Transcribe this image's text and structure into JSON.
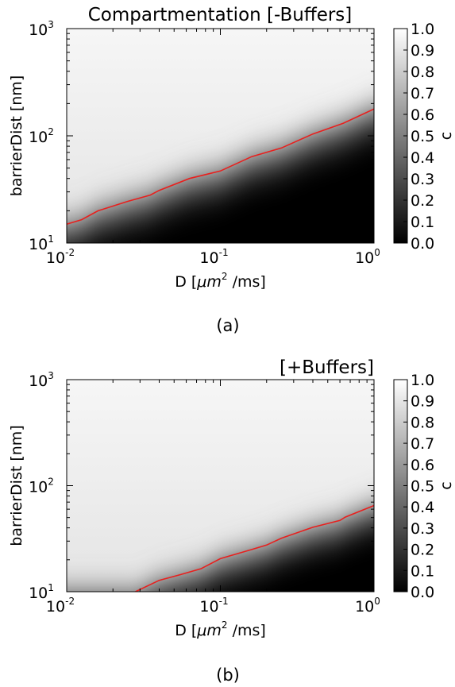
{
  "figure": {
    "captions": [
      "(a)",
      "(b)"
    ]
  },
  "chart_data": [
    {
      "type": "heatmap",
      "title": "Compartmentation [-Buffers]",
      "xlabel_prefix": "D [",
      "xlabel_unit": "μm",
      "xlabel_unit_exp": "2",
      "xlabel_suffix": " /ms]",
      "ylabel": "barrierDist [nm]",
      "xscale": "log",
      "yscale": "log",
      "xlim": [
        0.01,
        1
      ],
      "ylim": [
        10,
        1000
      ],
      "x_ticks": [
        {
          "base": "10",
          "exp": "-2",
          "value": 0.01
        },
        {
          "base": "10",
          "exp": "-1",
          "value": 0.1
        },
        {
          "base": "10",
          "exp": "0",
          "value": 1
        }
      ],
      "y_ticks": [
        {
          "base": "10",
          "exp": "1",
          "value": 10
        },
        {
          "base": "10",
          "exp": "2",
          "value": 100
        },
        {
          "base": "10",
          "exp": "3",
          "value": 1000
        }
      ],
      "colorbar": {
        "label": "c",
        "range": [
          0,
          1
        ],
        "ticks": [
          "0.0",
          "0.1",
          "0.2",
          "0.3",
          "0.4",
          "0.5",
          "0.6",
          "0.7",
          "0.8",
          "0.9",
          "1.0"
        ]
      },
      "contour_color": "#e8201e",
      "contour_level": 0.5,
      "contour": {
        "x": [
          0.01,
          0.0125,
          0.016,
          0.025,
          0.035,
          0.04,
          0.063,
          0.1,
          0.16,
          0.25,
          0.4,
          0.63,
          1.0
        ],
        "y": [
          15,
          16.5,
          20,
          24.5,
          28,
          31,
          40,
          47,
          64,
          77,
          104,
          131,
          178
        ]
      }
    },
    {
      "type": "heatmap",
      "title": "[+Buffers]",
      "xlabel_prefix": "D [",
      "xlabel_unit": "μm",
      "xlabel_unit_exp": "2",
      "xlabel_suffix": " /ms]",
      "ylabel": "barrierDist [nm]",
      "xscale": "log",
      "yscale": "log",
      "xlim": [
        0.01,
        1
      ],
      "ylim": [
        10,
        1000
      ],
      "x_ticks": [
        {
          "base": "10",
          "exp": "-2",
          "value": 0.01
        },
        {
          "base": "10",
          "exp": "-1",
          "value": 0.1
        },
        {
          "base": "10",
          "exp": "0",
          "value": 1
        }
      ],
      "y_ticks": [
        {
          "base": "10",
          "exp": "1",
          "value": 10
        },
        {
          "base": "10",
          "exp": "2",
          "value": 100
        },
        {
          "base": "10",
          "exp": "3",
          "value": 1000
        }
      ],
      "colorbar": {
        "label": "c",
        "range": [
          0,
          1
        ],
        "ticks": [
          "0.0",
          "0.1",
          "0.2",
          "0.3",
          "0.4",
          "0.5",
          "0.6",
          "0.7",
          "0.8",
          "0.9",
          "1.0"
        ]
      },
      "contour_color": "#e8201e",
      "contour_level": 0.5,
      "contour": {
        "x": [
          0.028,
          0.04,
          0.055,
          0.075,
          0.1,
          0.16,
          0.2,
          0.25,
          0.4,
          0.6,
          0.65,
          1.0
        ],
        "y": [
          10,
          12.8,
          14.5,
          16.5,
          20.5,
          25,
          27.5,
          32,
          40.5,
          47,
          50.5,
          65
        ]
      }
    }
  ]
}
